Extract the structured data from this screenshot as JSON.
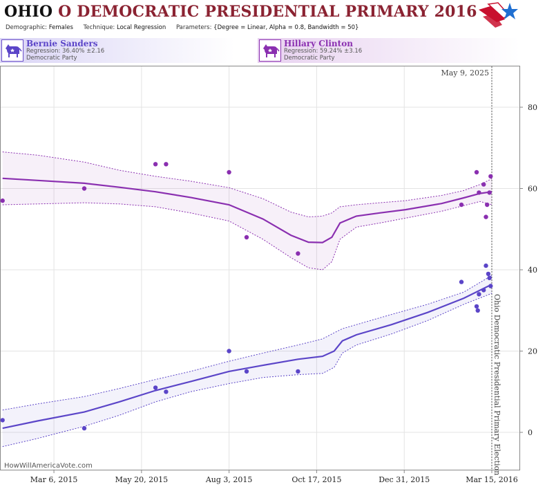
{
  "header": {
    "state": "OHIO",
    "title_rest": "O DEMOCRATIC PRESIDENTIAL PRIMARY 2016",
    "demographic_label": "Demographic:",
    "demographic_value": "Females",
    "technique_label": "Technique:",
    "technique_value": "Local Regression",
    "parameters_label": "Parameters:",
    "parameters_value": "{Degree = Linear, Alpha = 0.8, Bandwidth = 50}",
    "logo_icon": "flag-star-logo-icon"
  },
  "candidates": [
    {
      "name": "Bernie Sanders",
      "regression": "Regression: 36.40% ±2.16",
      "party": "Democratic Party",
      "icon": "donkey-icon",
      "color": "#5b45c8"
    },
    {
      "name": "Hillary Clinton",
      "regression": "Regression: 59.24% ±3.16",
      "party": "Democratic Party",
      "icon": "donkey-icon",
      "color": "#8a2fb0"
    }
  ],
  "watermark": "HowWillAmericaVote.com",
  "chart_data": {
    "type": "scatter",
    "x_ticks": [
      "Mar 6, 2015",
      "May 20, 2015",
      "Aug 3, 2015",
      "Oct 17, 2015",
      "Dec 31, 2015",
      "Mar 15, 2016"
    ],
    "x_range": [
      "2015-01-20",
      "2016-03-15"
    ],
    "y_ticks": [
      0,
      20,
      40,
      60,
      80
    ],
    "ylim": [
      -8,
      90
    ],
    "grid": true,
    "today_label": "May 9, 2025",
    "election_label": "Ohio Democratic Presidential Primary Election",
    "series": [
      {
        "name": "Hillary Clinton",
        "color": "#8a2fb0",
        "points": [
          [
            "2015-01-21",
            57
          ],
          [
            "2015-04-01",
            60
          ],
          [
            "2015-06-01",
            66
          ],
          [
            "2015-06-10",
            66
          ],
          [
            "2015-08-03",
            64
          ],
          [
            "2015-08-18",
            48
          ],
          [
            "2015-10-01",
            44
          ],
          [
            "2016-02-18",
            56
          ],
          [
            "2016-03-02",
            64
          ],
          [
            "2016-03-04",
            59
          ],
          [
            "2016-03-08",
            61
          ],
          [
            "2016-03-10",
            53
          ],
          [
            "2016-03-11",
            56
          ],
          [
            "2016-03-13",
            59
          ],
          [
            "2016-03-14",
            63
          ]
        ],
        "trend": [
          [
            "2015-01-21",
            62.5
          ],
          [
            "2015-02-20",
            62
          ],
          [
            "2015-04-01",
            61.3
          ],
          [
            "2015-05-01",
            60.3
          ],
          [
            "2015-06-01",
            59.2
          ],
          [
            "2015-07-01",
            57.8
          ],
          [
            "2015-08-03",
            56
          ],
          [
            "2015-09-01",
            52.5
          ],
          [
            "2015-09-25",
            48.5
          ],
          [
            "2015-10-10",
            46.8
          ],
          [
            "2015-10-22",
            46.7
          ],
          [
            "2015-10-30",
            48
          ],
          [
            "2015-11-06",
            51.5
          ],
          [
            "2015-11-20",
            53.2
          ],
          [
            "2015-12-10",
            54
          ],
          [
            "2016-01-01",
            54.8
          ],
          [
            "2016-02-01",
            56.3
          ],
          [
            "2016-02-20",
            57.7
          ],
          [
            "2016-03-05",
            58.8
          ],
          [
            "2016-03-15",
            59.2
          ]
        ],
        "upper": [
          [
            "2015-01-21",
            69
          ],
          [
            "2015-02-20",
            68.2
          ],
          [
            "2015-04-01",
            66.5
          ],
          [
            "2015-05-01",
            64.5
          ],
          [
            "2015-06-01",
            63
          ],
          [
            "2015-07-01",
            61.8
          ],
          [
            "2015-08-03",
            60.2
          ],
          [
            "2015-09-01",
            57.5
          ],
          [
            "2015-09-25",
            54.2
          ],
          [
            "2015-10-10",
            53
          ],
          [
            "2015-10-22",
            53.2
          ],
          [
            "2015-10-30",
            54
          ],
          [
            "2015-11-06",
            55.5
          ],
          [
            "2015-11-20",
            56
          ],
          [
            "2015-12-10",
            56.5
          ],
          [
            "2016-01-01",
            57
          ],
          [
            "2016-02-01",
            58.3
          ],
          [
            "2016-02-20",
            59.5
          ],
          [
            "2016-03-05",
            61
          ],
          [
            "2016-03-15",
            62.4
          ]
        ],
        "lower": [
          [
            "2015-01-21",
            56
          ],
          [
            "2015-02-20",
            56.2
          ],
          [
            "2015-04-01",
            56.5
          ],
          [
            "2015-05-01",
            56.2
          ],
          [
            "2015-06-01",
            55.5
          ],
          [
            "2015-07-01",
            54
          ],
          [
            "2015-08-03",
            52
          ],
          [
            "2015-09-01",
            47.5
          ],
          [
            "2015-09-25",
            43
          ],
          [
            "2015-10-10",
            40.5
          ],
          [
            "2015-10-22",
            40
          ],
          [
            "2015-10-30",
            42
          ],
          [
            "2015-11-06",
            47.5
          ],
          [
            "2015-11-20",
            50.5
          ],
          [
            "2015-12-10",
            51.5
          ],
          [
            "2016-01-01",
            52.7
          ],
          [
            "2016-02-01",
            54.4
          ],
          [
            "2016-02-20",
            55.8
          ],
          [
            "2016-03-05",
            56.8
          ],
          [
            "2016-03-15",
            56
          ]
        ]
      },
      {
        "name": "Bernie Sanders",
        "color": "#5b45c8",
        "points": [
          [
            "2015-01-21",
            3
          ],
          [
            "2015-04-01",
            1
          ],
          [
            "2015-06-01",
            11
          ],
          [
            "2015-06-10",
            10
          ],
          [
            "2015-08-03",
            20
          ],
          [
            "2015-08-18",
            15
          ],
          [
            "2015-10-01",
            15
          ],
          [
            "2016-02-18",
            37
          ],
          [
            "2016-03-02",
            31
          ],
          [
            "2016-03-03",
            30
          ],
          [
            "2016-03-04",
            34
          ],
          [
            "2016-03-08",
            35
          ],
          [
            "2016-03-10",
            41
          ],
          [
            "2016-03-12",
            39
          ],
          [
            "2016-03-13",
            38
          ],
          [
            "2016-03-14",
            36
          ]
        ],
        "trend": [
          [
            "2015-01-21",
            1
          ],
          [
            "2015-02-20",
            2.8
          ],
          [
            "2015-04-01",
            5
          ],
          [
            "2015-05-01",
            7.5
          ],
          [
            "2015-06-01",
            10.3
          ],
          [
            "2015-07-01",
            12.5
          ],
          [
            "2015-08-03",
            15
          ],
          [
            "2015-09-01",
            16.5
          ],
          [
            "2015-10-01",
            18
          ],
          [
            "2015-10-22",
            18.7
          ],
          [
            "2015-11-01",
            20
          ],
          [
            "2015-11-08",
            22.5
          ],
          [
            "2015-11-20",
            24
          ],
          [
            "2015-12-20",
            26.5
          ],
          [
            "2016-01-20",
            29.5
          ],
          [
            "2016-02-20",
            33
          ],
          [
            "2016-03-15",
            36.4
          ]
        ],
        "upper": [
          [
            "2015-01-21",
            5.5
          ],
          [
            "2015-02-20",
            7
          ],
          [
            "2015-04-01",
            8.8
          ],
          [
            "2015-05-01",
            10.8
          ],
          [
            "2015-06-01",
            13
          ],
          [
            "2015-07-01",
            15
          ],
          [
            "2015-08-03",
            17.5
          ],
          [
            "2015-09-01",
            19.5
          ],
          [
            "2015-10-01",
            21.5
          ],
          [
            "2015-10-22",
            23
          ],
          [
            "2015-11-01",
            24.5
          ],
          [
            "2015-11-08",
            25.5
          ],
          [
            "2015-11-20",
            26.5
          ],
          [
            "2015-12-20",
            29
          ],
          [
            "2016-01-20",
            31.5
          ],
          [
            "2016-02-20",
            34.5
          ],
          [
            "2016-03-15",
            38.6
          ]
        ],
        "lower": [
          [
            "2015-01-21",
            -3.5
          ],
          [
            "2015-02-20",
            -1.5
          ],
          [
            "2015-04-01",
            1.5
          ],
          [
            "2015-05-01",
            4.2
          ],
          [
            "2015-06-01",
            7.5
          ],
          [
            "2015-07-01",
            10
          ],
          [
            "2015-08-03",
            12
          ],
          [
            "2015-09-01",
            13.5
          ],
          [
            "2015-10-01",
            14.2
          ],
          [
            "2015-10-22",
            14.5
          ],
          [
            "2015-11-01",
            16
          ],
          [
            "2015-11-08",
            19.5
          ],
          [
            "2015-11-20",
            21.5
          ],
          [
            "2015-12-20",
            24.2
          ],
          [
            "2016-01-20",
            27.5
          ],
          [
            "2016-02-20",
            31.5
          ],
          [
            "2016-03-15",
            34.2
          ]
        ]
      }
    ]
  }
}
